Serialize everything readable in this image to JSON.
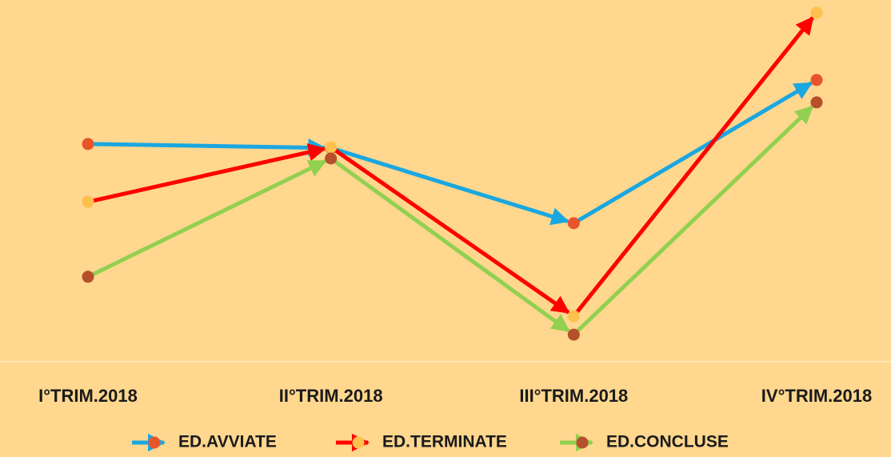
{
  "chart_data": {
    "type": "line",
    "categories": [
      "I°TRIM.2018",
      "II°TRIM.2018",
      "III°TRIM.2018",
      "IV°TRIM.2018"
    ],
    "series": [
      {
        "name": "ED.AVVIATE",
        "color": "#1aa7e0",
        "marker_color": "#e8552b",
        "values": [
          60.2,
          59.1,
          38.3,
          77.9
        ]
      },
      {
        "name": "ED.TERMINATE",
        "color": "#ff0000",
        "marker_color": "#ffc04d",
        "values": [
          44.2,
          59.3,
          12.6,
          96.5
        ]
      },
      {
        "name": "ED.CONCLUSE",
        "color": "#92d050",
        "marker_color": "#b5502a",
        "values": [
          23.5,
          56.2,
          7.5,
          71.7
        ]
      }
    ],
    "ylim": [
      0,
      100
    ],
    "legend": "bottom"
  }
}
